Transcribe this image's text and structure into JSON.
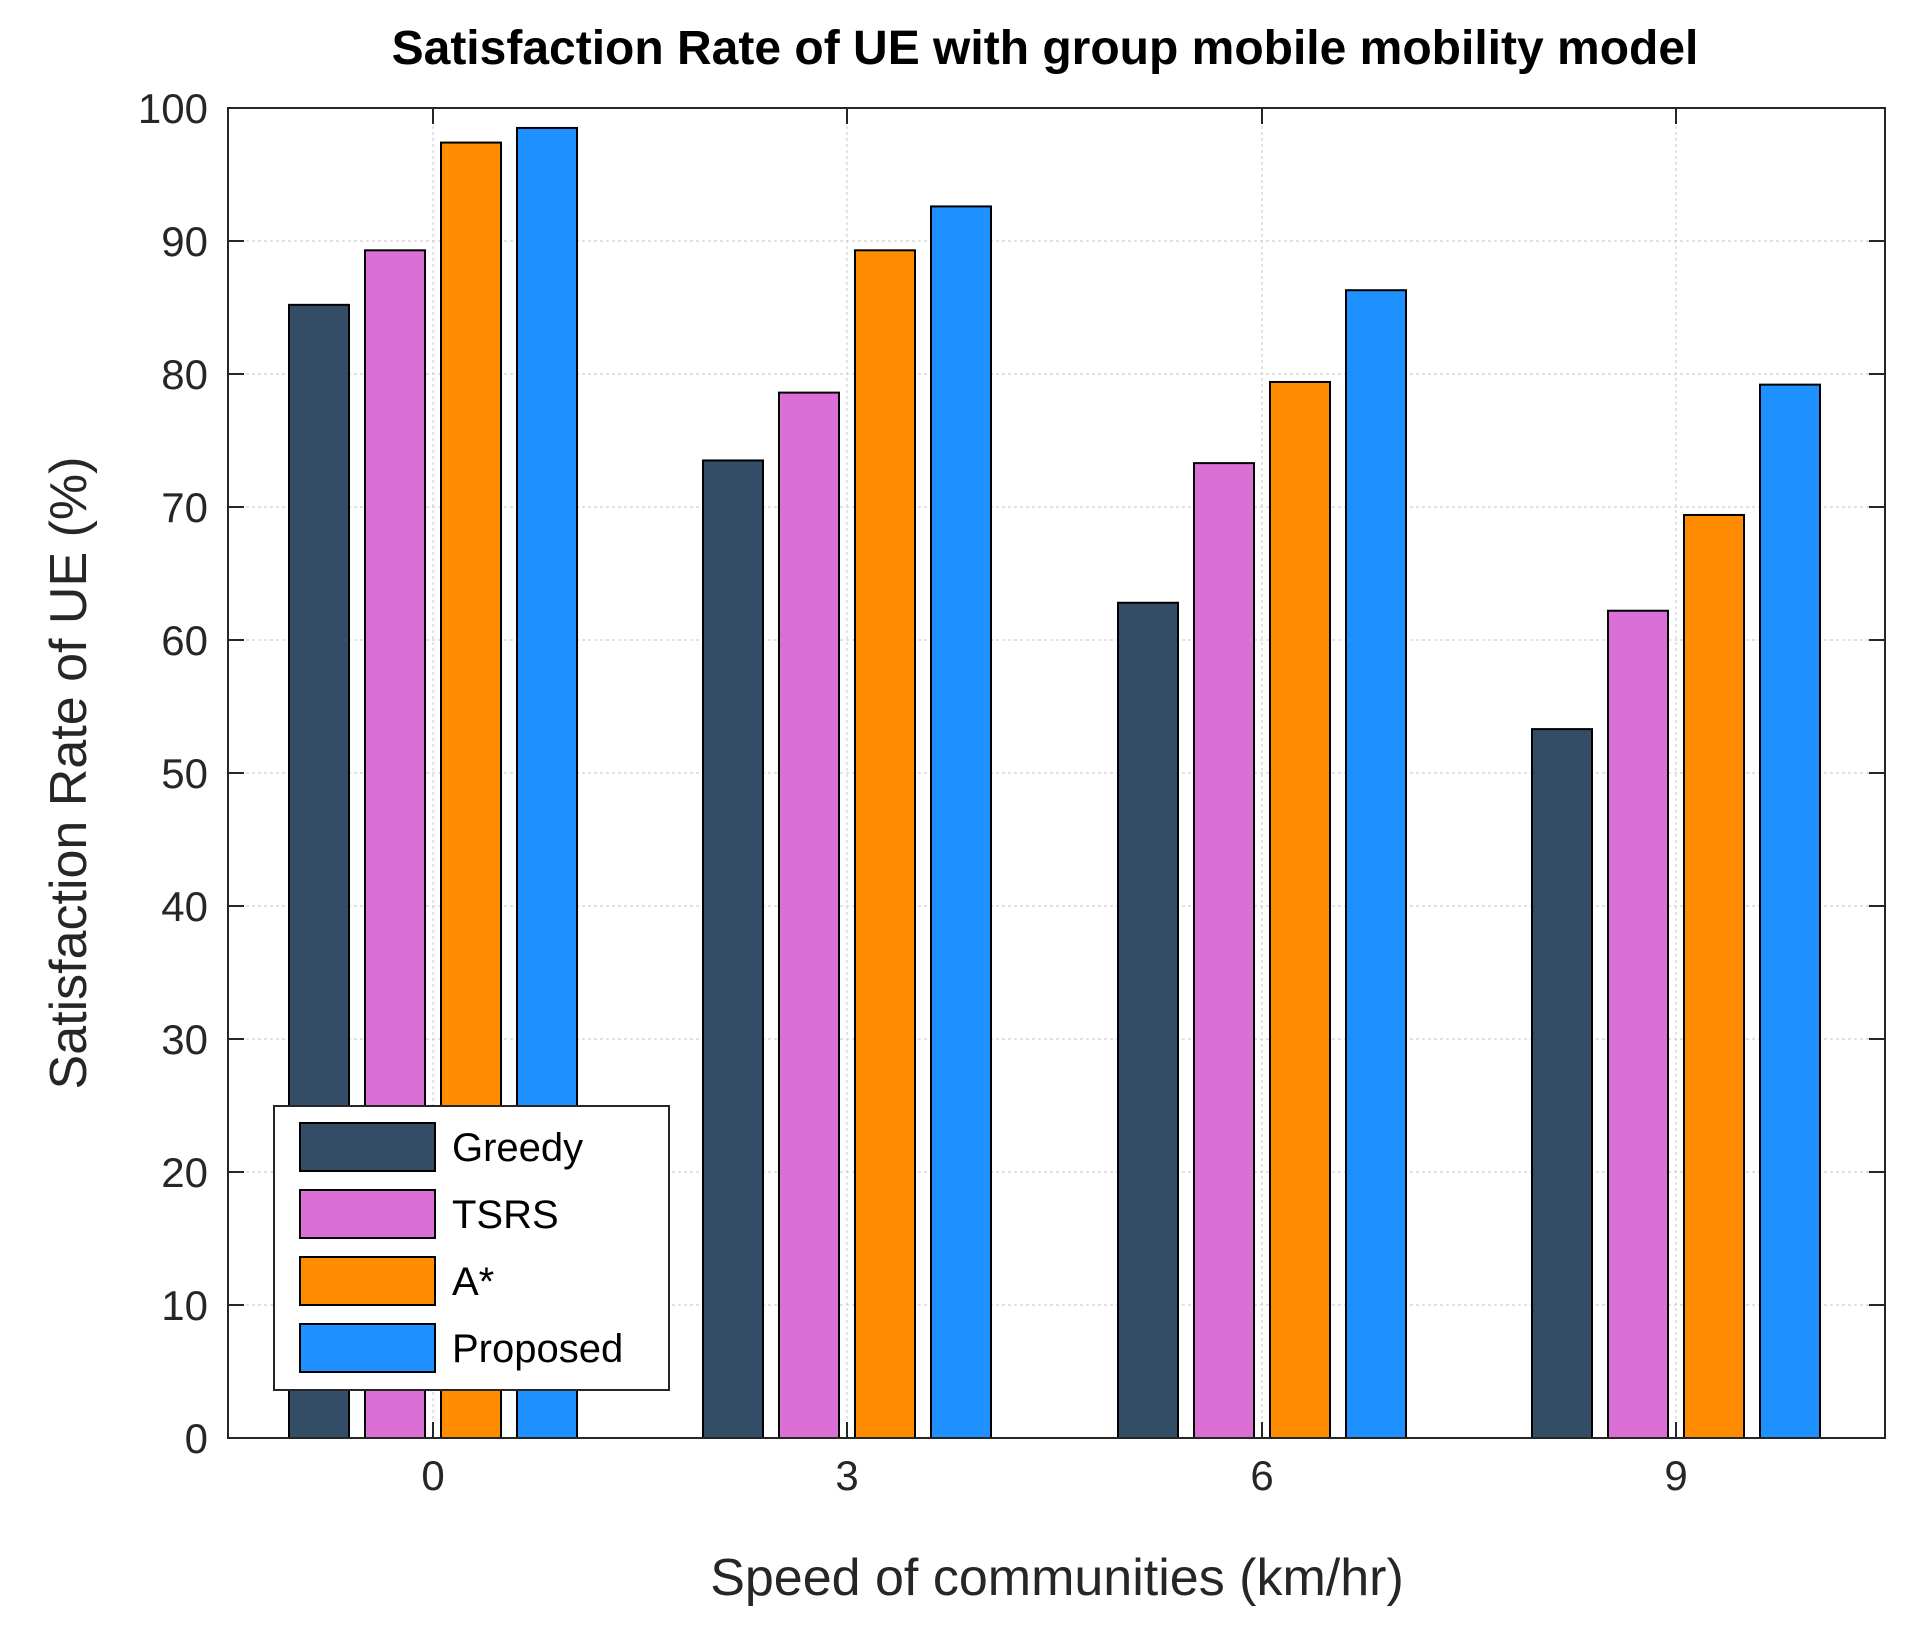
{
  "chart_data": {
    "type": "bar",
    "title": "Satisfaction Rate of UE with group mobile mobility model",
    "xlabel": "Speed of communities (km/hr)",
    "ylabel": "Satisfaction Rate of UE (%)",
    "categories": [
      "0",
      "3",
      "6",
      "9"
    ],
    "ylim": [
      0,
      100
    ],
    "yticks": [
      "0",
      "10",
      "20",
      "30",
      "40",
      "50",
      "60",
      "70",
      "80",
      "90",
      "100"
    ],
    "grid": true,
    "legend_position": "bottom-left",
    "series": [
      {
        "name": "Greedy",
        "color": "#334d66",
        "values": [
          85.2,
          73.5,
          62.8,
          53.3
        ]
      },
      {
        "name": "TSRS",
        "color": "#da70d6",
        "values": [
          89.3,
          78.6,
          73.3,
          62.2
        ]
      },
      {
        "name": "A*",
        "color": "#ff8c00",
        "values": [
          97.4,
          89.3,
          79.4,
          69.4
        ]
      },
      {
        "name": "Proposed",
        "color": "#1e90ff",
        "values": [
          98.5,
          92.6,
          86.3,
          79.2
        ]
      }
    ]
  }
}
